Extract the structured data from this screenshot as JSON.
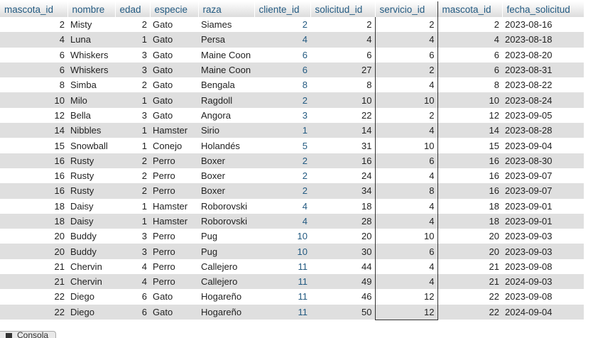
{
  "columns": [
    "mascota_id",
    "nombre",
    "edad",
    "especie",
    "raza",
    "cliente_id",
    "solicitud_id",
    "servicio_id",
    "mascota_id",
    "fecha_solicitud"
  ],
  "rows": [
    [
      "2",
      "Misty",
      "2",
      "Gato",
      "Siames",
      "2",
      "2",
      "2",
      "2",
      "2023-08-16"
    ],
    [
      "4",
      "Luna",
      "1",
      "Gato",
      "Persa",
      "4",
      "4",
      "4",
      "4",
      "2023-08-18"
    ],
    [
      "6",
      "Whiskers",
      "3",
      "Gato",
      "Maine Coon",
      "6",
      "6",
      "6",
      "6",
      "2023-08-20"
    ],
    [
      "6",
      "Whiskers",
      "3",
      "Gato",
      "Maine Coon",
      "6",
      "27",
      "2",
      "6",
      "2023-08-31"
    ],
    [
      "8",
      "Simba",
      "2",
      "Gato",
      "Bengala",
      "8",
      "8",
      "4",
      "8",
      "2023-08-22"
    ],
    [
      "10",
      "Milo",
      "1",
      "Gato",
      "Ragdoll",
      "2",
      "10",
      "10",
      "10",
      "2023-08-24"
    ],
    [
      "12",
      "Bella",
      "3",
      "Gato",
      "Angora",
      "3",
      "22",
      "2",
      "12",
      "2023-09-05"
    ],
    [
      "14",
      "Nibbles",
      "1",
      "Hamster",
      "Sirio",
      "1",
      "14",
      "4",
      "14",
      "2023-08-28"
    ],
    [
      "15",
      "Snowball",
      "1",
      "Conejo",
      "Holandés",
      "5",
      "31",
      "10",
      "15",
      "2023-09-04"
    ],
    [
      "16",
      "Rusty",
      "2",
      "Perro",
      "Boxer",
      "2",
      "16",
      "6",
      "16",
      "2023-08-30"
    ],
    [
      "16",
      "Rusty",
      "2",
      "Perro",
      "Boxer",
      "2",
      "24",
      "4",
      "16",
      "2023-09-07"
    ],
    [
      "16",
      "Rusty",
      "2",
      "Perro",
      "Boxer",
      "2",
      "34",
      "8",
      "16",
      "2023-09-07"
    ],
    [
      "18",
      "Daisy",
      "1",
      "Hamster",
      "Roborovski",
      "4",
      "18",
      "4",
      "18",
      "2023-09-01"
    ],
    [
      "18",
      "Daisy",
      "1",
      "Hamster",
      "Roborovski",
      "4",
      "28",
      "4",
      "18",
      "2023-09-01"
    ],
    [
      "20",
      "Buddy",
      "3",
      "Perro",
      "Pug",
      "10",
      "20",
      "10",
      "20",
      "2023-09-03"
    ],
    [
      "20",
      "Buddy",
      "3",
      "Perro",
      "Pug",
      "10",
      "30",
      "6",
      "20",
      "2023-09-03"
    ],
    [
      "21",
      "Chervin",
      "4",
      "Perro",
      "Callejero",
      "11",
      "44",
      "4",
      "21",
      "2023-09-08"
    ],
    [
      "21",
      "Chervin",
      "4",
      "Perro",
      "Callejero",
      "11",
      "49",
      "4",
      "21",
      "2024-09-03"
    ],
    [
      "22",
      "Diego",
      "6",
      "Gato",
      "Hogareño",
      "11",
      "46",
      "12",
      "22",
      "2023-09-08"
    ],
    [
      "22",
      "Diego",
      "6",
      "Gato",
      "Hogareño",
      "11",
      "50",
      "12",
      "22",
      "2024-09-04"
    ]
  ],
  "console": {
    "label": "Consola",
    "icon": "console-icon"
  },
  "colors": {
    "header_text": "#235a81",
    "link": "#235a81",
    "row_alt": "#dfdfdf"
  }
}
